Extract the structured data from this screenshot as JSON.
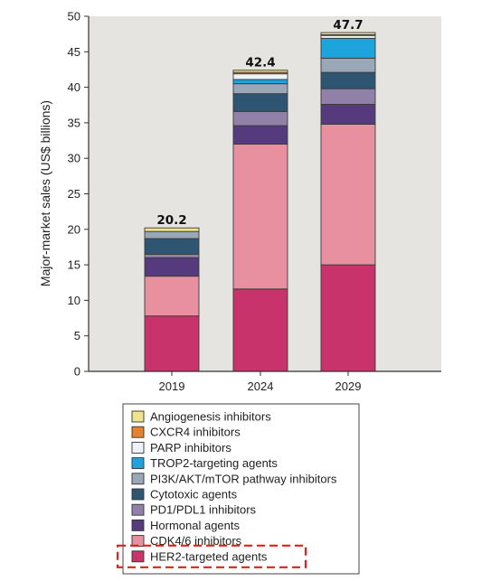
{
  "chart_data": {
    "type": "bar",
    "stacked": true,
    "categories": [
      "2019",
      "2024",
      "2029"
    ],
    "totals": [
      "20.2",
      "42.4",
      "47.7"
    ],
    "ylabel": "Major-market sales (US$ billions)",
    "ylim": [
      0,
      50
    ],
    "yticks": [
      "0",
      "5",
      "10",
      "15",
      "20",
      "25",
      "30",
      "35",
      "40",
      "45",
      "50"
    ],
    "grid": false,
    "legend_position": "bottom",
    "series": [
      {
        "name": "HER2-targeted agents",
        "color": "#c8336b",
        "values": [
          7.8,
          11.6,
          15.0
        ]
      },
      {
        "name": "CDK4/6 inhibitors",
        "color": "#e8909f",
        "values": [
          5.6,
          20.4,
          19.8
        ]
      },
      {
        "name": "Hormonal agents",
        "color": "#553a7e",
        "values": [
          2.6,
          2.6,
          2.8
        ]
      },
      {
        "name": "PD1/PDL1 inhibitors",
        "color": "#9181a9",
        "values": [
          0.5,
          2.0,
          2.2
        ]
      },
      {
        "name": "Cytotoxic agents",
        "color": "#2e5672",
        "values": [
          2.2,
          2.5,
          2.3
        ]
      },
      {
        "name": "PI3K/AKT/mTOR pathway inhibitors",
        "color": "#9aa7b7",
        "values": [
          1.0,
          1.4,
          2.0
        ]
      },
      {
        "name": "TROP2-targeting agents",
        "color": "#1ea4dc",
        "values": [
          0.0,
          0.6,
          2.8
        ]
      },
      {
        "name": "PARP inhibitors",
        "color": "#edf3f9",
        "values": [
          0.0,
          0.8,
          0.4
        ]
      },
      {
        "name": "CXCR4 inhibitors",
        "color": "#e4832e",
        "values": [
          0.0,
          0.2,
          0.1
        ]
      },
      {
        "name": "Angiogenesis inhibitors",
        "color": "#efe48e",
        "values": [
          0.5,
          0.3,
          0.3
        ]
      }
    ],
    "legend_order": [
      "Angiogenesis inhibitors",
      "CXCR4 inhibitors",
      "PARP inhibitors",
      "TROP2-targeting agents",
      "PI3K/AKT/mTOR pathway inhibitors",
      "Cytotoxic agents",
      "PD1/PDL1 inhibitors",
      "Hormonal agents",
      "CDK4/6 inhibitors",
      "HER2-targeted agents"
    ],
    "highlighted_legend_entry": "HER2-targeted agents",
    "highlight_color": "#e0211b"
  }
}
